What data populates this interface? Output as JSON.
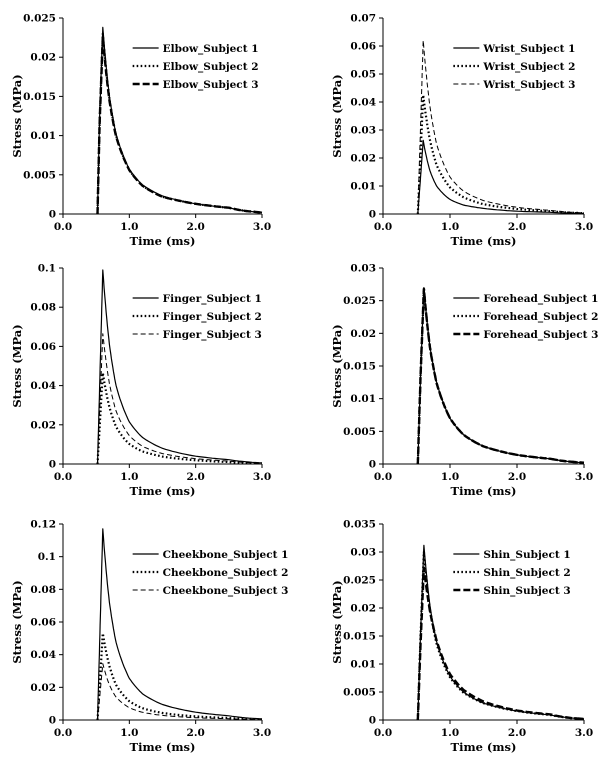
{
  "chart_data": [
    {
      "type": "line",
      "xlabel": "Time (ms)",
      "ylabel": "Stress (MPa)",
      "xlim": [
        0,
        3.0
      ],
      "ylim": [
        0,
        0.025
      ],
      "xticks": [
        "0.0",
        "1.0",
        "2.0",
        "3.0"
      ],
      "yticks": [
        "0",
        "0.005",
        "0.01",
        "0.015",
        "0.02",
        "0.025"
      ],
      "legend_position": "top-right",
      "series": [
        {
          "name": "Elbow_Subject 1",
          "style": "solid",
          "points": [
            [
              0.52,
              0
            ],
            [
              0.55,
              0.012
            ],
            [
              0.6,
              0.0238
            ],
            [
              0.7,
              0.015
            ],
            [
              0.8,
              0.0102
            ],
            [
              1.0,
              0.0057
            ],
            [
              1.2,
              0.0037
            ],
            [
              1.5,
              0.0023
            ],
            [
              2.0,
              0.0013
            ],
            [
              2.5,
              0.0008
            ],
            [
              3.0,
              0.0002
            ]
          ]
        },
        {
          "name": "Elbow_Subject 2",
          "style": "dotted",
          "points": [
            [
              0.52,
              0
            ],
            [
              0.55,
              0.011
            ],
            [
              0.6,
              0.023
            ],
            [
              0.7,
              0.0147
            ],
            [
              0.8,
              0.01
            ],
            [
              1.0,
              0.0056
            ],
            [
              1.2,
              0.0036
            ],
            [
              1.5,
              0.0022
            ],
            [
              2.0,
              0.0013
            ],
            [
              2.5,
              0.0008
            ],
            [
              3.0,
              0.0002
            ]
          ]
        },
        {
          "name": "Elbow_Subject 3",
          "style": "dash-thick",
          "points": [
            [
              0.52,
              0
            ],
            [
              0.55,
              0.011
            ],
            [
              0.6,
              0.0226
            ],
            [
              0.7,
              0.0145
            ],
            [
              0.8,
              0.0099
            ],
            [
              1.0,
              0.0056
            ],
            [
              1.2,
              0.0036
            ],
            [
              1.5,
              0.0022
            ],
            [
              2.0,
              0.0013
            ],
            [
              2.5,
              0.0008
            ],
            [
              3.0,
              0.0002
            ]
          ]
        }
      ]
    },
    {
      "type": "line",
      "xlabel": "Time (ms)",
      "ylabel": "Stress (MPa)",
      "xlim": [
        0,
        3.0
      ],
      "ylim": [
        0,
        0.07
      ],
      "xticks": [
        "0.0",
        "1.0",
        "2.0",
        "3.0"
      ],
      "yticks": [
        "0",
        "0.01",
        "0.02",
        "0.03",
        "0.04",
        "0.05",
        "0.06",
        "0.07"
      ],
      "legend_position": "top-right",
      "series": [
        {
          "name": "Wrist_Subject 1",
          "style": "solid",
          "points": [
            [
              0.52,
              0
            ],
            [
              0.56,
              0.013
            ],
            [
              0.6,
              0.0263
            ],
            [
              0.7,
              0.0155
            ],
            [
              0.8,
              0.01
            ],
            [
              1.0,
              0.0052
            ],
            [
              1.2,
              0.0032
            ],
            [
              1.5,
              0.002
            ],
            [
              2.0,
              0.001
            ],
            [
              2.5,
              0.0006
            ],
            [
              3.0,
              0.0002
            ]
          ]
        },
        {
          "name": "Wrist_Subject 2",
          "style": "dotted",
          "points": [
            [
              0.52,
              0
            ],
            [
              0.56,
              0.021
            ],
            [
              0.6,
              0.0425
            ],
            [
              0.7,
              0.0265
            ],
            [
              0.8,
              0.0175
            ],
            [
              1.0,
              0.0095
            ],
            [
              1.2,
              0.006
            ],
            [
              1.5,
              0.0035
            ],
            [
              2.0,
              0.0018
            ],
            [
              2.5,
              0.001
            ],
            [
              3.0,
              0.0003
            ]
          ]
        },
        {
          "name": "Wrist_Subject 3",
          "style": "dashed",
          "points": [
            [
              0.52,
              0
            ],
            [
              0.56,
              0.031
            ],
            [
              0.6,
              0.062
            ],
            [
              0.7,
              0.0385
            ],
            [
              0.8,
              0.025
            ],
            [
              1.0,
              0.0132
            ],
            [
              1.2,
              0.0082
            ],
            [
              1.5,
              0.0048
            ],
            [
              2.0,
              0.0024
            ],
            [
              2.5,
              0.0013
            ],
            [
              3.0,
              0.0004
            ]
          ]
        }
      ]
    },
    {
      "type": "line",
      "xlabel": "Time (ms)",
      "ylabel": "Stress (MPa)",
      "xlim": [
        0,
        3.0
      ],
      "ylim": [
        0,
        0.1
      ],
      "xticks": [
        "0.0",
        "1.0",
        "2.0",
        "3.0"
      ],
      "yticks": [
        "0",
        "0.02",
        "0.04",
        "0.06",
        "0.08",
        "0.1"
      ],
      "legend_position": "top-right",
      "series": [
        {
          "name": "Finger_Subject 1",
          "style": "solid",
          "points": [
            [
              0.52,
              0
            ],
            [
              0.56,
              0.049
            ],
            [
              0.6,
              0.099
            ],
            [
              0.7,
              0.061
            ],
            [
              0.8,
              0.04
            ],
            [
              1.0,
              0.0215
            ],
            [
              1.2,
              0.0135
            ],
            [
              1.5,
              0.008
            ],
            [
              2.0,
              0.004
            ],
            [
              2.5,
              0.0022
            ],
            [
              3.0,
              0.0006
            ]
          ]
        },
        {
          "name": "Finger_Subject 2",
          "style": "dotted",
          "points": [
            [
              0.52,
              0
            ],
            [
              0.56,
              0.023
            ],
            [
              0.6,
              0.0465
            ],
            [
              0.7,
              0.029
            ],
            [
              0.8,
              0.019
            ],
            [
              1.0,
              0.0102
            ],
            [
              1.2,
              0.0064
            ],
            [
              1.5,
              0.0038
            ],
            [
              2.0,
              0.0019
            ],
            [
              2.5,
              0.001
            ],
            [
              3.0,
              0.0003
            ]
          ]
        },
        {
          "name": "Finger_Subject 3",
          "style": "dashed",
          "points": [
            [
              0.52,
              0
            ],
            [
              0.56,
              0.033
            ],
            [
              0.6,
              0.0665
            ],
            [
              0.7,
              0.041
            ],
            [
              0.8,
              0.027
            ],
            [
              1.0,
              0.0145
            ],
            [
              1.2,
              0.009
            ],
            [
              1.5,
              0.0053
            ],
            [
              2.0,
              0.0027
            ],
            [
              2.5,
              0.0015
            ],
            [
              3.0,
              0.0004
            ]
          ]
        }
      ]
    },
    {
      "type": "line",
      "xlabel": "Time (ms)",
      "ylabel": "Stress (MPa)",
      "xlim": [
        0,
        3.0
      ],
      "ylim": [
        0,
        0.03
      ],
      "xticks": [
        "0.0",
        "1.0",
        "2.0",
        "3.0"
      ],
      "yticks": [
        "0",
        "0.005",
        "0.01",
        "0.015",
        "0.02",
        "0.025",
        "0.03"
      ],
      "legend_position": "top-right",
      "series": [
        {
          "name": "Forehead_Subject 1",
          "style": "solid",
          "points": [
            [
              0.52,
              0
            ],
            [
              0.56,
              0.0135
            ],
            [
              0.61,
              0.027
            ],
            [
              0.7,
              0.018
            ],
            [
              0.8,
              0.0125
            ],
            [
              1.0,
              0.007
            ],
            [
              1.2,
              0.0045
            ],
            [
              1.5,
              0.0027
            ],
            [
              2.0,
              0.0014
            ],
            [
              2.5,
              0.0008
            ],
            [
              3.0,
              0.0002
            ]
          ]
        },
        {
          "name": "Forehead_Subject 2",
          "style": "dotted",
          "points": [
            [
              0.52,
              0
            ],
            [
              0.56,
              0.0134
            ],
            [
              0.61,
              0.0269
            ],
            [
              0.7,
              0.0179
            ],
            [
              0.8,
              0.0124
            ],
            [
              1.0,
              0.007
            ],
            [
              1.2,
              0.0045
            ],
            [
              1.5,
              0.0027
            ],
            [
              2.0,
              0.0014
            ],
            [
              2.5,
              0.0008
            ],
            [
              3.0,
              0.0002
            ]
          ]
        },
        {
          "name": "Forehead_Subject 3",
          "style": "dash-thick",
          "points": [
            [
              0.52,
              0
            ],
            [
              0.56,
              0.0134
            ],
            [
              0.61,
              0.0268
            ],
            [
              0.7,
              0.0179
            ],
            [
              0.8,
              0.0124
            ],
            [
              1.0,
              0.007
            ],
            [
              1.2,
              0.0045
            ],
            [
              1.5,
              0.0027
            ],
            [
              2.0,
              0.0014
            ],
            [
              2.5,
              0.0008
            ],
            [
              3.0,
              0.0002
            ]
          ]
        }
      ]
    },
    {
      "type": "line",
      "xlabel": "Time (ms)",
      "ylabel": "Stress (MPa)",
      "xlim": [
        0,
        3.0
      ],
      "ylim": [
        0,
        0.12
      ],
      "xticks": [
        "0.0",
        "1.0",
        "2.0",
        "3.0"
      ],
      "yticks": [
        "0",
        "0.02",
        "0.04",
        "0.06",
        "0.08",
        "0.1",
        "0.12"
      ],
      "legend_position": "top-right",
      "series": [
        {
          "name": "Cheekbone_Subject 1",
          "style": "solid",
          "points": [
            [
              0.52,
              0
            ],
            [
              0.56,
              0.058
            ],
            [
              0.6,
              0.117
            ],
            [
              0.7,
              0.072
            ],
            [
              0.8,
              0.0475
            ],
            [
              1.0,
              0.0255
            ],
            [
              1.2,
              0.016
            ],
            [
              1.5,
              0.0095
            ],
            [
              2.0,
              0.0048
            ],
            [
              2.5,
              0.0026
            ],
            [
              3.0,
              0.0007
            ]
          ]
        },
        {
          "name": "Cheekbone_Subject 2",
          "style": "dotted",
          "points": [
            [
              0.52,
              0
            ],
            [
              0.56,
              0.026
            ],
            [
              0.6,
              0.053
            ],
            [
              0.7,
              0.033
            ],
            [
              0.8,
              0.0215
            ],
            [
              1.0,
              0.0115
            ],
            [
              1.2,
              0.0072
            ],
            [
              1.5,
              0.0043
            ],
            [
              2.0,
              0.0022
            ],
            [
              2.5,
              0.0012
            ],
            [
              3.0,
              0.0003
            ]
          ]
        },
        {
          "name": "Cheekbone_Subject 3",
          "style": "dashed",
          "points": [
            [
              0.52,
              0
            ],
            [
              0.56,
              0.017
            ],
            [
              0.6,
              0.0345
            ],
            [
              0.7,
              0.0215
            ],
            [
              0.8,
              0.014
            ],
            [
              1.0,
              0.0075
            ],
            [
              1.2,
              0.0047
            ],
            [
              1.5,
              0.0028
            ],
            [
              2.0,
              0.0014
            ],
            [
              2.5,
              0.0008
            ],
            [
              3.0,
              0.0002
            ]
          ]
        }
      ]
    },
    {
      "type": "line",
      "xlabel": "Time (ms)",
      "ylabel": "Stress (MPa)",
      "xlim": [
        0,
        3.0
      ],
      "ylim": [
        0,
        0.035
      ],
      "xticks": [
        "0.0",
        "1.0",
        "2.0",
        "3.0"
      ],
      "yticks": [
        "0",
        "0.005",
        "0.01",
        "0.015",
        "0.02",
        "0.025",
        "0.03",
        "0.035"
      ],
      "legend_position": "top-right",
      "series": [
        {
          "name": "Shin_Subject 1",
          "style": "solid",
          "points": [
            [
              0.52,
              0
            ],
            [
              0.56,
              0.0155
            ],
            [
              0.61,
              0.0312
            ],
            [
              0.7,
              0.0205
            ],
            [
              0.8,
              0.014
            ],
            [
              1.0,
              0.0078
            ],
            [
              1.2,
              0.005
            ],
            [
              1.5,
              0.003
            ],
            [
              2.0,
              0.0016
            ],
            [
              2.5,
              0.0009
            ],
            [
              3.0,
              0.0002
            ]
          ]
        },
        {
          "name": "Shin_Subject 2",
          "style": "dotted",
          "points": [
            [
              0.52,
              0
            ],
            [
              0.56,
              0.015
            ],
            [
              0.61,
              0.03
            ],
            [
              0.7,
              0.0198
            ],
            [
              0.8,
              0.0136
            ],
            [
              1.0,
              0.0076
            ],
            [
              1.2,
              0.0049
            ],
            [
              1.5,
              0.003
            ],
            [
              2.0,
              0.0016
            ],
            [
              2.5,
              0.0009
            ],
            [
              3.0,
              0.0002
            ]
          ]
        },
        {
          "name": "Shin_Subject 3",
          "style": "dash-thick",
          "points": [
            [
              0.52,
              0
            ],
            [
              0.56,
              0.0135
            ],
            [
              0.61,
              0.0272
            ],
            [
              0.7,
              0.0195
            ],
            [
              0.8,
              0.0142
            ],
            [
              1.0,
              0.0082
            ],
            [
              1.2,
              0.0054
            ],
            [
              1.5,
              0.0033
            ],
            [
              2.0,
              0.0017
            ],
            [
              2.5,
              0.001
            ],
            [
              3.0,
              0.0002
            ]
          ]
        }
      ]
    }
  ]
}
